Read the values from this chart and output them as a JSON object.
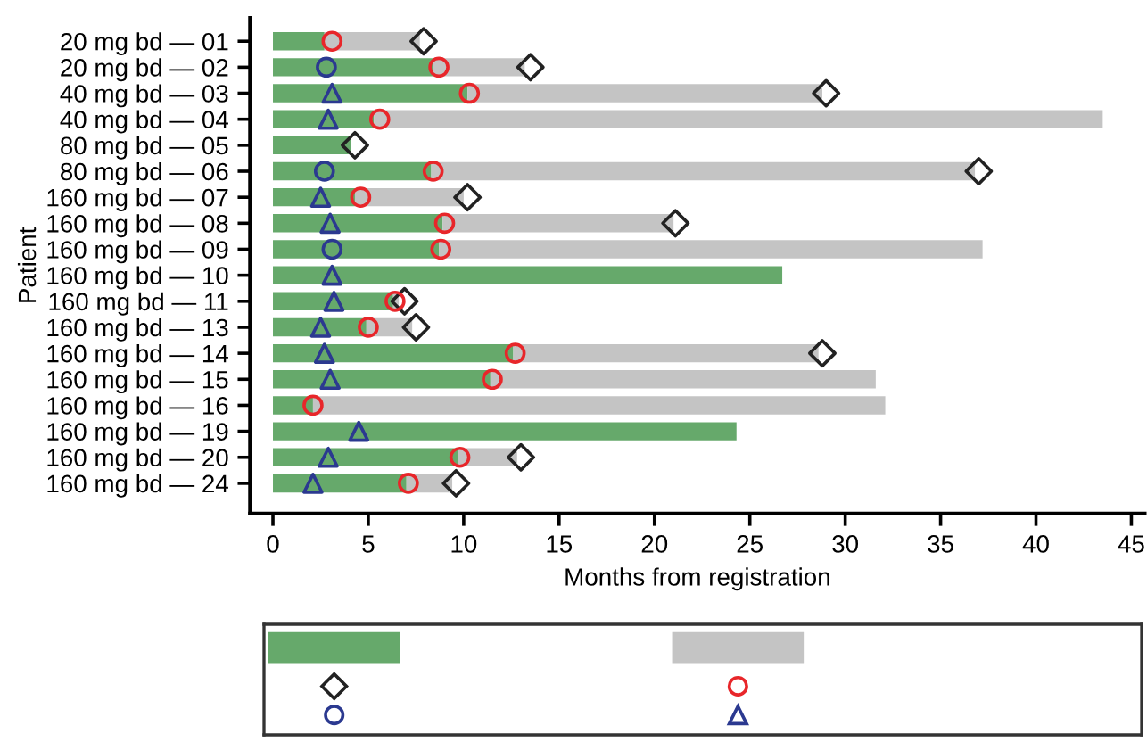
{
  "chart_data": {
    "type": "bar",
    "orientation": "horizontal",
    "stacked": true,
    "xlabel": "Months from registration",
    "ylabel": "Patient",
    "categories": [
      "20 mg bd — 01",
      "20 mg bd — 02",
      "40 mg bd — 03",
      "40 mg bd — 04",
      "80 mg bd — 05",
      "80 mg bd — 06",
      "160 mg bd — 07",
      "160 mg bd — 08",
      "160 mg bd — 09",
      "160 mg bd — 10",
      "160 mg bd — 11",
      "160 mg bd — 13",
      "160 mg bd — 14",
      "160 mg bd — 15",
      "160 mg bd — 16",
      "160 mg bd — 19",
      "160 mg bd — 20",
      "160 mg bd — 24"
    ],
    "series": [
      {
        "type": "bar",
        "color": "#66a96b",
        "values": [
          2.7,
          8.4,
          10.2,
          5.3,
          4.1,
          8.3,
          4.3,
          8.9,
          8.7,
          26.7,
          6.3,
          4.9,
          12.6,
          11.4,
          2.1,
          24.3,
          9.7,
          7.0
        ]
      },
      {
        "type": "bar",
        "color": "#c4c4c4",
        "values": [
          5.0,
          4.8,
          18.6,
          38.2,
          0,
          28.5,
          5.7,
          12.1,
          28.5,
          0,
          0.3,
          2.4,
          16.0,
          20.2,
          30.0,
          0,
          3.1,
          2.4
        ]
      },
      {
        "type": "scatter",
        "marker": "diamond",
        "color": "#222222",
        "values": [
          7.9,
          13.5,
          29.0,
          null,
          4.3,
          37.0,
          10.2,
          21.1,
          null,
          null,
          6.9,
          7.5,
          28.8,
          null,
          null,
          null,
          13.0,
          9.6
        ]
      },
      {
        "type": "scatter",
        "marker": "circle",
        "color": "#e8262a",
        "values": [
          3.1,
          8.7,
          10.3,
          5.6,
          null,
          8.4,
          4.6,
          9.0,
          8.8,
          null,
          6.4,
          5.0,
          12.7,
          11.5,
          2.1,
          null,
          9.8,
          7.1
        ]
      },
      {
        "type": "scatter",
        "marker": "circle",
        "color": "#2b3990",
        "values": [
          null,
          2.8,
          null,
          null,
          null,
          2.7,
          null,
          null,
          3.1,
          null,
          null,
          null,
          null,
          null,
          null,
          null,
          null,
          null
        ]
      },
      {
        "type": "scatter",
        "marker": "triangle",
        "color": "#2b3990",
        "values": [
          null,
          null,
          3.1,
          2.9,
          null,
          null,
          2.5,
          3.0,
          null,
          3.1,
          3.2,
          2.5,
          2.7,
          3.0,
          null,
          4.5,
          2.9,
          2.1
        ]
      }
    ],
    "xlim": [
      -1.2,
      45.7
    ],
    "xticks": [
      0,
      5,
      10,
      15,
      20,
      25,
      30,
      35,
      40,
      45
    ],
    "grid": false
  }
}
